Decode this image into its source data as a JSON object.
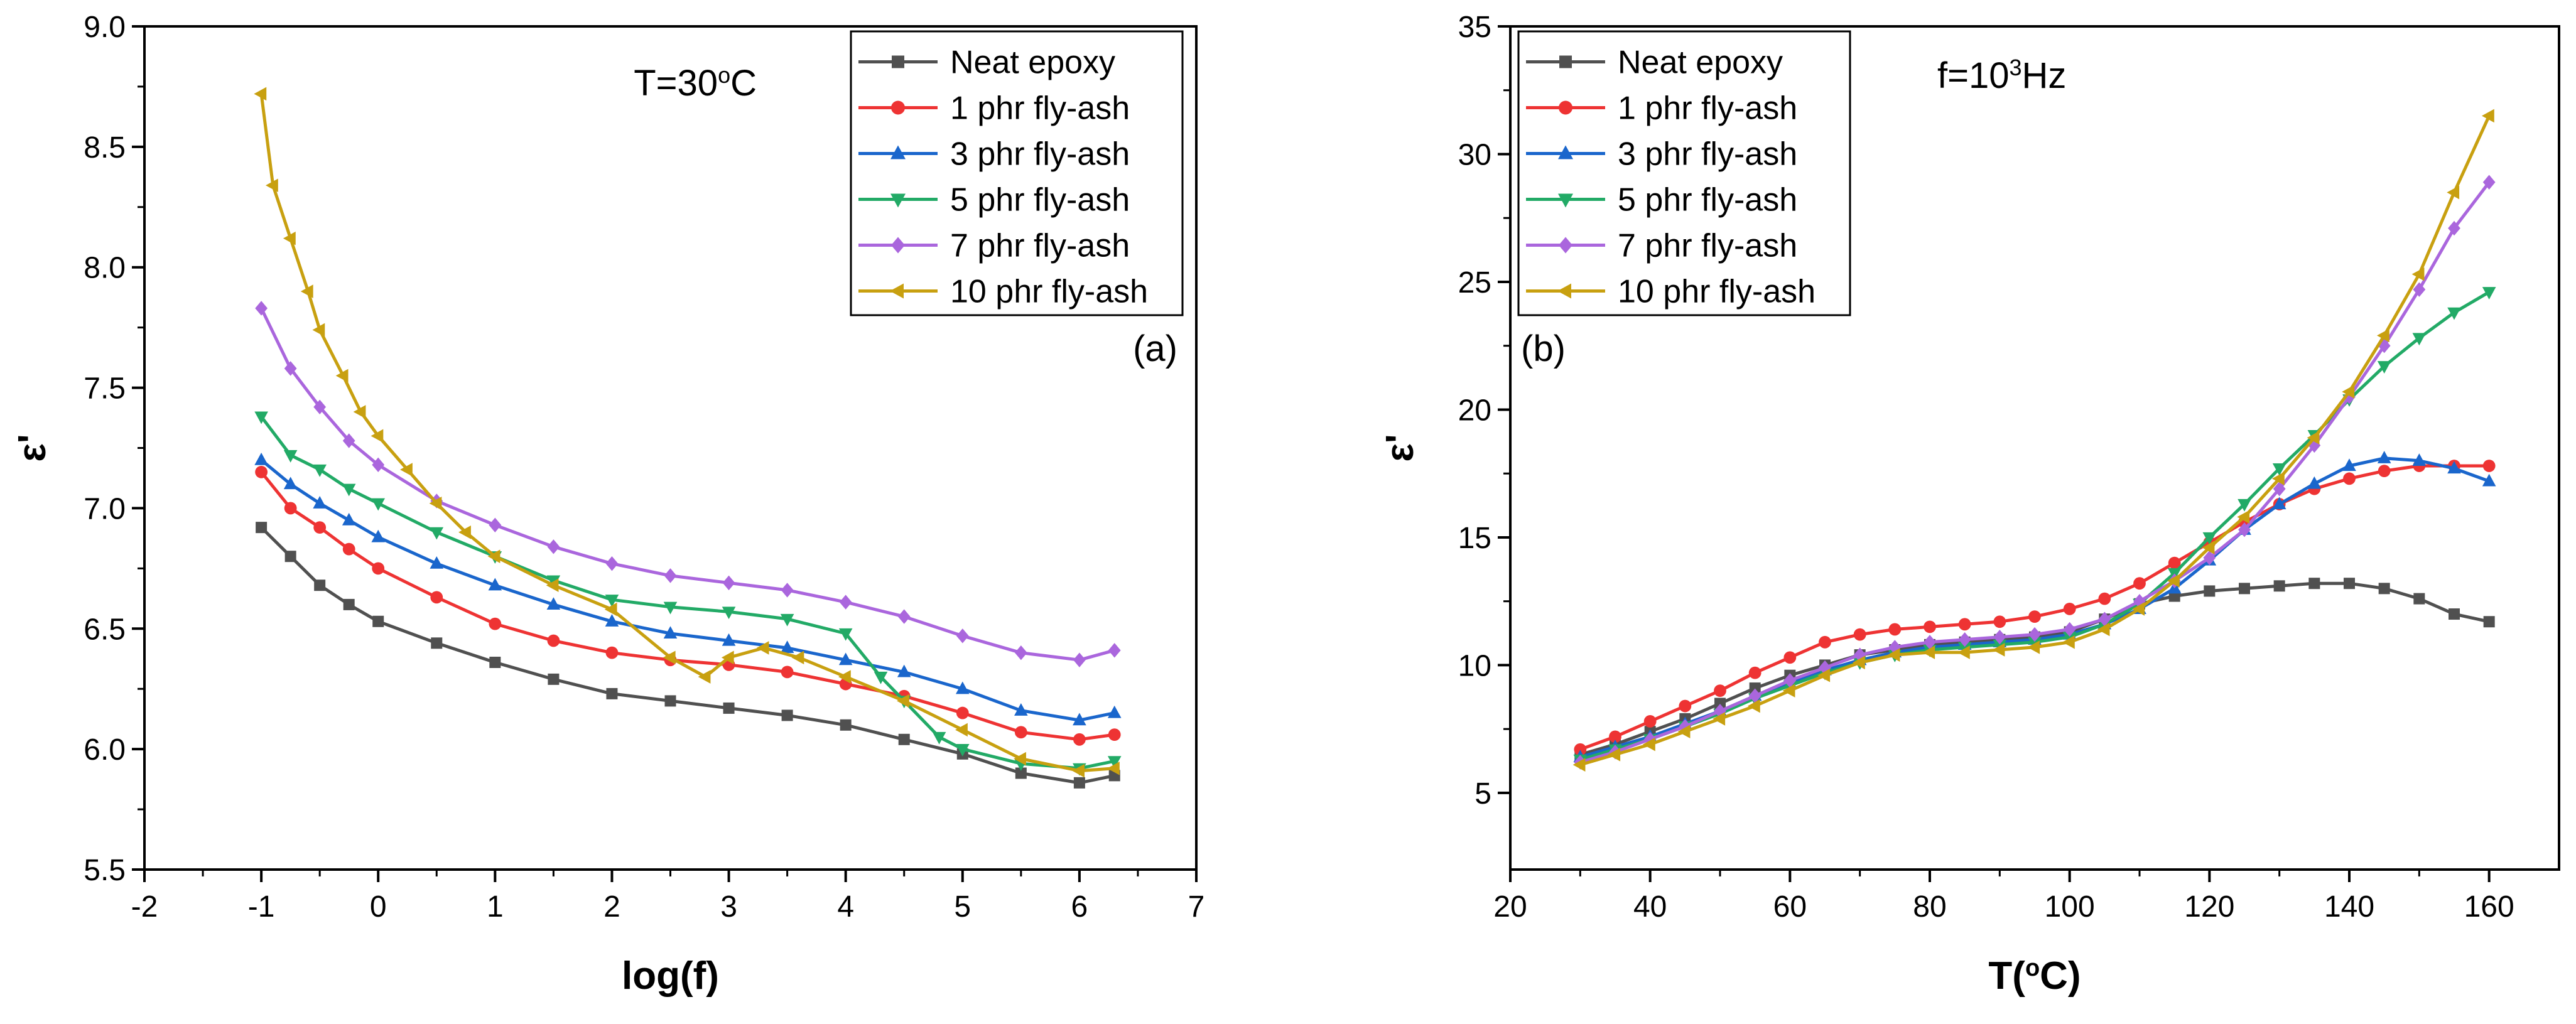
{
  "chart_data": [
    {
      "type": "line",
      "panel_label": "(a)",
      "annotation": {
        "prefix": "T=30",
        "sup": "o",
        "suffix": "C"
      },
      "xlabel": "log(f)",
      "ylabel": "ε'",
      "xlim": [
        -2,
        7
      ],
      "ylim": [
        5.5,
        9.0
      ],
      "xticks": [
        -2,
        -1,
        0,
        1,
        2,
        3,
        4,
        5,
        6,
        7
      ],
      "yticks": [
        5.5,
        6.0,
        6.5,
        7.0,
        7.5,
        8.0,
        8.5,
        9.0
      ],
      "xtick_labels": [
        "-2",
        "-1",
        "0",
        "1",
        "2",
        "3",
        "4",
        "5",
        "6",
        "7"
      ],
      "ytick_labels": [
        "5.5",
        "6.0",
        "6.5",
        "7.0",
        "7.5",
        "8.0",
        "8.5",
        "9.0"
      ],
      "legend_position": "top-right",
      "series": [
        {
          "name": "Neat epoxy",
          "color": "#505050",
          "marker": "square",
          "x": [
            -1.0,
            -0.75,
            -0.5,
            -0.25,
            0.0,
            0.5,
            1.0,
            1.5,
            2.0,
            2.5,
            3.0,
            3.5,
            4.0,
            4.5,
            5.0,
            5.5,
            6.0,
            6.3
          ],
          "y": [
            6.92,
            6.8,
            6.68,
            6.6,
            6.53,
            6.44,
            6.36,
            6.29,
            6.23,
            6.2,
            6.17,
            6.14,
            6.1,
            6.04,
            5.98,
            5.9,
            5.86,
            5.89
          ]
        },
        {
          "name": "1 phr fly-ash",
          "color": "#ee3333",
          "marker": "circle",
          "x": [
            -1.0,
            -0.75,
            -0.5,
            -0.25,
            0.0,
            0.5,
            1.0,
            1.5,
            2.0,
            2.5,
            3.0,
            3.5,
            4.0,
            4.5,
            5.0,
            5.5,
            6.0,
            6.3
          ],
          "y": [
            7.15,
            7.0,
            6.92,
            6.83,
            6.75,
            6.63,
            6.52,
            6.45,
            6.4,
            6.37,
            6.35,
            6.32,
            6.27,
            6.22,
            6.15,
            6.07,
            6.04,
            6.06
          ]
        },
        {
          "name": "3 phr fly-ash",
          "color": "#1a66cc",
          "marker": "triangle-up",
          "x": [
            -1.0,
            -0.75,
            -0.5,
            -0.25,
            0.0,
            0.5,
            1.0,
            1.5,
            2.0,
            2.5,
            3.0,
            3.5,
            4.0,
            4.5,
            5.0,
            5.5,
            6.0,
            6.3
          ],
          "y": [
            7.2,
            7.1,
            7.02,
            6.95,
            6.88,
            6.77,
            6.68,
            6.6,
            6.53,
            6.48,
            6.45,
            6.42,
            6.37,
            6.32,
            6.25,
            6.16,
            6.12,
            6.15
          ]
        },
        {
          "name": "5 phr fly-ash",
          "color": "#22aa66",
          "marker": "triangle-down",
          "x": [
            -1.0,
            -0.75,
            -0.5,
            -0.25,
            0.0,
            0.5,
            1.0,
            1.5,
            2.0,
            2.5,
            3.0,
            3.5,
            4.0,
            4.3,
            4.5,
            4.8,
            5.0,
            5.5,
            6.0,
            6.3
          ],
          "y": [
            7.38,
            7.22,
            7.16,
            7.08,
            7.02,
            6.9,
            6.8,
            6.7,
            6.62,
            6.59,
            6.57,
            6.54,
            6.48,
            6.3,
            6.2,
            6.05,
            6.0,
            5.94,
            5.92,
            5.95
          ]
        },
        {
          "name": "7 phr fly-ash",
          "color": "#aa66dd",
          "marker": "diamond",
          "x": [
            -1.0,
            -0.75,
            -0.5,
            -0.25,
            0.0,
            0.5,
            1.0,
            1.5,
            2.0,
            2.5,
            3.0,
            3.5,
            4.0,
            4.5,
            5.0,
            5.5,
            6.0,
            6.3
          ],
          "y": [
            7.83,
            7.58,
            7.42,
            7.28,
            7.18,
            7.03,
            6.93,
            6.84,
            6.77,
            6.72,
            6.69,
            6.66,
            6.61,
            6.55,
            6.47,
            6.4,
            6.37,
            6.41
          ]
        },
        {
          "name": "10 phr fly-ash",
          "color": "#c8a010",
          "marker": "triangle-left",
          "x": [
            -1.0,
            -0.9,
            -0.75,
            -0.6,
            -0.5,
            -0.3,
            -0.15,
            0.0,
            0.25,
            0.5,
            0.75,
            1.0,
            1.5,
            2.0,
            2.5,
            2.8,
            3.0,
            3.3,
            3.6,
            4.0,
            4.5,
            5.0,
            5.5,
            6.0,
            6.3
          ],
          "y": [
            8.72,
            8.34,
            8.12,
            7.9,
            7.74,
            7.55,
            7.4,
            7.3,
            7.16,
            7.02,
            6.9,
            6.8,
            6.68,
            6.58,
            6.38,
            6.3,
            6.38,
            6.42,
            6.38,
            6.3,
            6.2,
            6.08,
            5.96,
            5.91,
            5.92
          ]
        }
      ]
    },
    {
      "type": "line",
      "panel_label": "(b)",
      "annotation": {
        "prefix": "f=10",
        "sup": "3",
        "suffix": "Hz"
      },
      "xlabel": "T(oC)",
      "xlabel_parts": {
        "prefix": "T(",
        "sup": "o",
        "suffix": "C)"
      },
      "ylabel": "ε'",
      "xlim": [
        20,
        170
      ],
      "ylim": [
        2,
        35
      ],
      "xticks": [
        20,
        40,
        60,
        80,
        100,
        120,
        140,
        160
      ],
      "yticks": [
        5,
        10,
        15,
        20,
        25,
        30,
        35
      ],
      "xtick_labels": [
        "20",
        "40",
        "60",
        "80",
        "100",
        "120",
        "140",
        "160"
      ],
      "ytick_labels": [
        "5",
        "10",
        "15",
        "20",
        "25",
        "30",
        "35"
      ],
      "legend_position": "top-left",
      "series": [
        {
          "name": "Neat epoxy",
          "color": "#505050",
          "marker": "square",
          "x": [
            30,
            35,
            40,
            45,
            50,
            55,
            60,
            65,
            70,
            75,
            80,
            85,
            90,
            95,
            100,
            105,
            110,
            115,
            120,
            125,
            130,
            135,
            140,
            145,
            150,
            155,
            160
          ],
          "y": [
            6.5,
            6.9,
            7.4,
            7.9,
            8.5,
            9.1,
            9.6,
            10.0,
            10.4,
            10.6,
            10.8,
            10.9,
            11.0,
            11.1,
            11.3,
            11.8,
            12.4,
            12.7,
            12.9,
            13.0,
            13.1,
            13.2,
            13.2,
            13.0,
            12.6,
            12.0,
            11.7
          ]
        },
        {
          "name": "1 phr fly-ash",
          "color": "#ee3333",
          "marker": "circle",
          "x": [
            30,
            35,
            40,
            45,
            50,
            55,
            60,
            65,
            70,
            75,
            80,
            85,
            90,
            95,
            100,
            105,
            110,
            115,
            120,
            125,
            130,
            135,
            140,
            145,
            150,
            155,
            160
          ],
          "y": [
            6.7,
            7.2,
            7.8,
            8.4,
            9.0,
            9.7,
            10.3,
            10.9,
            11.2,
            11.4,
            11.5,
            11.6,
            11.7,
            11.9,
            12.2,
            12.6,
            13.2,
            14.0,
            14.8,
            15.6,
            16.3,
            16.9,
            17.3,
            17.6,
            17.8,
            17.8,
            17.8
          ]
        },
        {
          "name": "3 phr fly-ash",
          "color": "#1a66cc",
          "marker": "triangle-up",
          "x": [
            30,
            35,
            40,
            45,
            50,
            55,
            60,
            65,
            70,
            75,
            80,
            85,
            90,
            95,
            100,
            105,
            110,
            115,
            120,
            125,
            130,
            135,
            140,
            145,
            150,
            155,
            160
          ],
          "y": [
            6.4,
            6.8,
            7.2,
            7.7,
            8.2,
            8.8,
            9.3,
            9.8,
            10.2,
            10.5,
            10.7,
            10.8,
            10.9,
            11.0,
            11.2,
            11.6,
            12.2,
            13.0,
            14.1,
            15.3,
            16.3,
            17.1,
            17.8,
            18.1,
            18.0,
            17.7,
            17.2
          ]
        },
        {
          "name": "5 phr fly-ash",
          "color": "#22aa66",
          "marker": "triangle-down",
          "x": [
            30,
            35,
            40,
            45,
            50,
            55,
            60,
            65,
            70,
            75,
            80,
            85,
            90,
            95,
            100,
            105,
            110,
            115,
            120,
            125,
            130,
            135,
            140,
            145,
            150,
            155,
            160
          ],
          "y": [
            6.3,
            6.7,
            7.1,
            7.6,
            8.1,
            8.7,
            9.2,
            9.7,
            10.1,
            10.4,
            10.6,
            10.7,
            10.8,
            10.9,
            11.1,
            11.6,
            12.4,
            13.6,
            15.0,
            16.3,
            17.7,
            19.0,
            20.4,
            21.7,
            22.8,
            23.8,
            24.6
          ]
        },
        {
          "name": "7 phr fly-ash",
          "color": "#aa66dd",
          "marker": "diamond",
          "x": [
            30,
            35,
            40,
            45,
            50,
            55,
            60,
            65,
            70,
            75,
            80,
            85,
            90,
            95,
            100,
            105,
            110,
            115,
            120,
            125,
            130,
            135,
            140,
            145,
            150,
            155,
            160
          ],
          "y": [
            6.2,
            6.6,
            7.1,
            7.6,
            8.2,
            8.8,
            9.4,
            9.9,
            10.4,
            10.7,
            10.9,
            11.0,
            11.1,
            11.2,
            11.4,
            11.8,
            12.5,
            13.3,
            14.2,
            15.3,
            16.9,
            18.6,
            20.5,
            22.5,
            24.7,
            27.1,
            28.9
          ]
        },
        {
          "name": "10 phr fly-ash",
          "color": "#c8a010",
          "marker": "triangle-left",
          "x": [
            30,
            35,
            40,
            45,
            50,
            55,
            60,
            65,
            70,
            75,
            80,
            85,
            90,
            95,
            100,
            105,
            110,
            115,
            120,
            125,
            130,
            135,
            140,
            145,
            150,
            155,
            160
          ],
          "y": [
            6.1,
            6.5,
            6.9,
            7.4,
            7.9,
            8.4,
            9.0,
            9.6,
            10.1,
            10.4,
            10.5,
            10.5,
            10.6,
            10.7,
            10.9,
            11.4,
            12.2,
            13.3,
            14.6,
            15.8,
            17.3,
            18.9,
            20.7,
            22.9,
            25.3,
            28.5,
            31.5
          ]
        }
      ]
    }
  ]
}
